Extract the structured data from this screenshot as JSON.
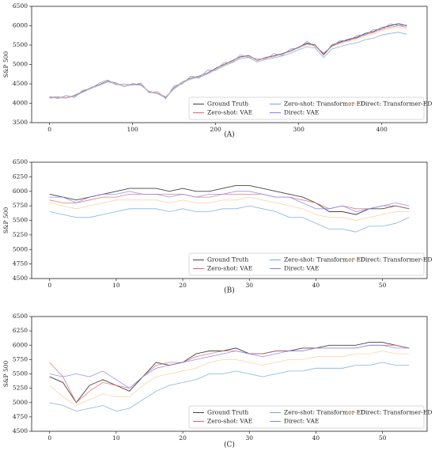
{
  "chart_data": [
    {
      "type": "line",
      "caption": "(A)",
      "y_label": "S&P 500",
      "legend": "lower right",
      "xlim": [
        -21.5,
        454.5
      ],
      "ylim": [
        3500,
        6500
      ],
      "xticks": [
        0,
        100,
        200,
        300,
        400
      ],
      "yticks": [
        3500,
        4000,
        4500,
        5000,
        5500,
        6000,
        6500
      ],
      "x": [
        0,
        10,
        20,
        30,
        40,
        50,
        60,
        70,
        80,
        90,
        100,
        110,
        120,
        130,
        140,
        150,
        160,
        170,
        180,
        190,
        200,
        210,
        220,
        230,
        240,
        250,
        260,
        270,
        280,
        290,
        300,
        310,
        320,
        330,
        340,
        350,
        360,
        370,
        380,
        390,
        400,
        410,
        420,
        430
      ],
      "series": [
        {
          "name": "Ground Truth",
          "color": "#444444",
          "values": [
            4150,
            4160,
            4140,
            4200,
            4300,
            4400,
            4480,
            4570,
            4520,
            4440,
            4500,
            4480,
            4300,
            4250,
            4150,
            4400,
            4550,
            4650,
            4700,
            4780,
            4900,
            5000,
            5100,
            5200,
            5230,
            5100,
            5180,
            5220,
            5280,
            5350,
            5450,
            5550,
            5500,
            5250,
            5500,
            5580,
            5650,
            5700,
            5800,
            5850,
            5950,
            6000,
            6050,
            6000
          ]
        },
        {
          "name": "Zero-shot: VAE",
          "color": "#e06666",
          "values": [
            4140,
            4150,
            4150,
            4190,
            4290,
            4390,
            4470,
            4560,
            4510,
            4450,
            4490,
            4470,
            4310,
            4260,
            4170,
            4380,
            4540,
            4640,
            4690,
            4770,
            4890,
            4990,
            5090,
            5190,
            5220,
            5110,
            5170,
            5210,
            5270,
            5340,
            5440,
            5530,
            5490,
            5280,
            5480,
            5560,
            5630,
            5680,
            5770,
            5820,
            5910,
            5960,
            6000,
            5960
          ]
        },
        {
          "name": "Zero-shot: Transformer-ED",
          "color": "#6fa8dc",
          "values": [
            4130,
            4140,
            4130,
            4180,
            4280,
            4380,
            4460,
            4550,
            4500,
            4430,
            4480,
            4460,
            4290,
            4240,
            4140,
            4370,
            4530,
            4620,
            4670,
            4750,
            4860,
            4960,
            5050,
            5150,
            5180,
            5060,
            5130,
            5170,
            5220,
            5290,
            5380,
            5460,
            5420,
            5180,
            5400,
            5460,
            5520,
            5560,
            5640,
            5680,
            5760,
            5800,
            5830,
            5780
          ]
        },
        {
          "name": "Direct: VAE",
          "color": "#8080ff",
          "values": [
            4180,
            4120,
            4200,
            4150,
            4330,
            4380,
            4520,
            4600,
            4480,
            4500,
            4470,
            4520,
            4270,
            4300,
            4120,
            4450,
            4500,
            4700,
            4650,
            4850,
            4850,
            5050,
            5050,
            5250,
            5180,
            5150,
            5130,
            5280,
            5230,
            5400,
            5420,
            5600,
            5450,
            5300,
            5460,
            5620,
            5600,
            5750,
            5760,
            5900,
            5900,
            6050,
            6000,
            6020
          ]
        },
        {
          "name": "Direct: Transformer-ED",
          "color": "#f9cb9c",
          "values": [
            4140,
            4150,
            4140,
            4190,
            4290,
            4390,
            4470,
            4560,
            4510,
            4440,
            4490,
            4470,
            4300,
            4250,
            4160,
            4390,
            4540,
            4640,
            4690,
            4770,
            4880,
            4980,
            5080,
            5180,
            5210,
            5090,
            5160,
            5200,
            5260,
            5330,
            5420,
            5510,
            5470,
            5230,
            5460,
            5530,
            5600,
            5650,
            5730,
            5780,
            5870,
            5920,
            5960,
            5920
          ]
        }
      ]
    },
    {
      "type": "line",
      "caption": "(B)",
      "y_label": "S&P 500",
      "legend": "lower right",
      "xlim": [
        -2.7,
        56.7
      ],
      "ylim": [
        4500,
        6500
      ],
      "xticks": [
        0,
        10,
        20,
        30,
        40,
        50
      ],
      "yticks": [
        4500,
        4750,
        5000,
        5250,
        5500,
        5750,
        6000,
        6250,
        6500
      ],
      "x": [
        0,
        2,
        4,
        6,
        8,
        10,
        12,
        14,
        16,
        18,
        20,
        22,
        24,
        26,
        28,
        30,
        32,
        34,
        36,
        38,
        40,
        42,
        44,
        46,
        48,
        50,
        52,
        54
      ],
      "series": [
        {
          "name": "Ground Truth",
          "color": "#444444",
          "values": [
            5950,
            5900,
            5850,
            5900,
            5950,
            6000,
            6050,
            6050,
            6050,
            6000,
            6050,
            6000,
            6000,
            6050,
            6100,
            6100,
            6050,
            6000,
            5950,
            5900,
            5800,
            5650,
            5650,
            5600,
            5700,
            5700,
            5750,
            5700
          ]
        },
        {
          "name": "Zero-shot: VAE",
          "color": "#e06666",
          "values": [
            5850,
            5800,
            5800,
            5850,
            5900,
            5900,
            5950,
            5950,
            5950,
            5950,
            5950,
            5900,
            5900,
            5950,
            5950,
            5950,
            5950,
            5900,
            5900,
            5850,
            5800,
            5700,
            5750,
            5700,
            5700,
            5750,
            5750,
            5700
          ]
        },
        {
          "name": "Zero-shot: Transformer-ED",
          "color": "#6fa8dc",
          "values": [
            5650,
            5600,
            5550,
            5550,
            5600,
            5650,
            5700,
            5700,
            5700,
            5650,
            5700,
            5650,
            5650,
            5700,
            5700,
            5750,
            5700,
            5650,
            5550,
            5550,
            5450,
            5350,
            5350,
            5300,
            5400,
            5400,
            5450,
            5550
          ]
        },
        {
          "name": "Direct: VAE",
          "color": "#8080ff",
          "values": [
            5900,
            5900,
            5800,
            5900,
            5950,
            5950,
            6000,
            5950,
            5950,
            5900,
            5950,
            5900,
            5950,
            5950,
            6000,
            6000,
            5950,
            5900,
            5900,
            5800,
            5700,
            5700,
            5750,
            5650,
            5700,
            5750,
            5800,
            5750
          ]
        },
        {
          "name": "Direct: Transformer-ED",
          "color": "#f9cb9c",
          "values": [
            5800,
            5750,
            5700,
            5750,
            5800,
            5850,
            5850,
            5850,
            5850,
            5800,
            5850,
            5800,
            5800,
            5850,
            5850,
            5900,
            5850,
            5800,
            5750,
            5700,
            5600,
            5550,
            5550,
            5500,
            5550,
            5600,
            5650,
            5650
          ]
        }
      ]
    },
    {
      "type": "line",
      "caption": "(C)",
      "y_label": "S&P 500",
      "legend": "lower right",
      "xlim": [
        -2.7,
        56.7
      ],
      "ylim": [
        4500,
        6500
      ],
      "xticks": [
        0,
        10,
        20,
        30,
        40,
        50
      ],
      "yticks": [
        4500,
        4750,
        5000,
        5250,
        5500,
        5750,
        6000,
        6250,
        6500
      ],
      "x": [
        0,
        2,
        4,
        6,
        8,
        10,
        12,
        14,
        16,
        18,
        20,
        22,
        24,
        26,
        28,
        30,
        32,
        34,
        36,
        38,
        40,
        42,
        44,
        46,
        48,
        50,
        52,
        54
      ],
      "series": [
        {
          "name": "Ground Truth",
          "color": "#444444",
          "values": [
            5450,
            5350,
            5000,
            5300,
            5400,
            5300,
            5200,
            5450,
            5700,
            5650,
            5700,
            5850,
            5900,
            5900,
            5950,
            5850,
            5850,
            5900,
            5900,
            5950,
            5950,
            6000,
            6000,
            6000,
            6050,
            6050,
            6000,
            5950
          ]
        },
        {
          "name": "Zero-shot: VAE",
          "color": "#e06666",
          "values": [
            5700,
            5450,
            5000,
            5200,
            5350,
            5300,
            5250,
            5450,
            5650,
            5700,
            5700,
            5800,
            5850,
            5900,
            5900,
            5850,
            5850,
            5900,
            5900,
            5900,
            5950,
            5950,
            5950,
            5950,
            6000,
            6000,
            6000,
            5950
          ]
        },
        {
          "name": "Zero-shot: Transformer-ED",
          "color": "#6fa8dc",
          "values": [
            5000,
            4950,
            4850,
            4900,
            4950,
            4850,
            4900,
            5050,
            5200,
            5300,
            5350,
            5400,
            5500,
            5500,
            5550,
            5500,
            5450,
            5500,
            5550,
            5550,
            5600,
            5600,
            5600,
            5650,
            5650,
            5700,
            5650,
            5650
          ]
        },
        {
          "name": "Direct: VAE",
          "color": "#8080ff",
          "values": [
            5500,
            5450,
            5500,
            5450,
            5550,
            5400,
            5250,
            5450,
            5600,
            5650,
            5700,
            5750,
            5800,
            5850,
            5900,
            5850,
            5800,
            5850,
            5900,
            5900,
            5950,
            5950,
            5950,
            5950,
            6000,
            6000,
            5950,
            5950
          ]
        },
        {
          "name": "Direct: Transformer-ED",
          "color": "#f9cb9c",
          "values": [
            5300,
            5100,
            4950,
            5050,
            5150,
            5100,
            5100,
            5300,
            5450,
            5500,
            5550,
            5600,
            5700,
            5750,
            5750,
            5700,
            5650,
            5700,
            5750,
            5750,
            5800,
            5800,
            5800,
            5850,
            5850,
            5900,
            5850,
            5850
          ]
        }
      ]
    }
  ]
}
